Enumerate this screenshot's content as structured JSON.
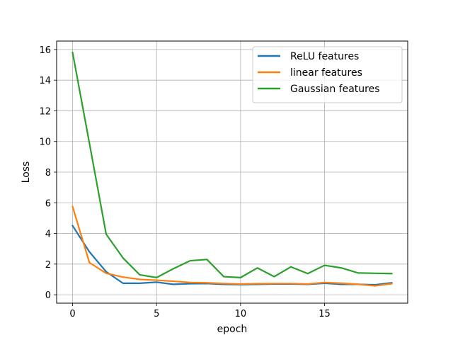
{
  "chart_data": {
    "type": "line",
    "xlabel": "epoch",
    "ylabel": "Loss",
    "xlim": [
      -0.95,
      19.95
    ],
    "ylim": [
      -0.55,
      16.55
    ],
    "xticks": [
      0,
      5,
      10,
      15
    ],
    "yticks": [
      0,
      2,
      4,
      6,
      8,
      10,
      12,
      14,
      16
    ],
    "grid": true,
    "legend_position": "top-right",
    "x": [
      0,
      1,
      2,
      3,
      4,
      5,
      6,
      7,
      8,
      9,
      10,
      11,
      12,
      13,
      14,
      15,
      16,
      17,
      18,
      19
    ],
    "series": [
      {
        "name": "ReLU features",
        "color": "#1f77b4",
        "values": [
          4.5,
          2.8,
          1.5,
          0.75,
          0.75,
          0.82,
          0.68,
          0.72,
          0.73,
          0.68,
          0.66,
          0.68,
          0.7,
          0.7,
          0.68,
          0.75,
          0.68,
          0.68,
          0.65,
          0.78
        ]
      },
      {
        "name": "linear features",
        "color": "#ff7f0e",
        "values": [
          5.75,
          2.1,
          1.4,
          1.15,
          1.0,
          0.95,
          0.88,
          0.8,
          0.78,
          0.73,
          0.7,
          0.72,
          0.73,
          0.73,
          0.7,
          0.8,
          0.75,
          0.68,
          0.58,
          0.72
        ]
      },
      {
        "name": "Gaussian features",
        "color": "#2ca02c",
        "values": [
          15.8,
          9.9,
          3.95,
          2.4,
          1.3,
          1.12,
          1.7,
          2.22,
          2.3,
          1.18,
          1.12,
          1.75,
          1.18,
          1.82,
          1.38,
          1.92,
          1.75,
          1.42,
          1.4,
          1.38
        ]
      }
    ]
  }
}
